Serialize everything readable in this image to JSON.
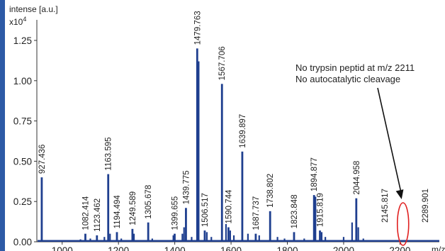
{
  "chart_data": {
    "type": "bar",
    "ylabel": "intense [a.u.]",
    "y_multiplier": "x10",
    "y_multiplier_exp": "4",
    "xlabel": "m/z",
    "xlim": [
      910,
      2340
    ],
    "ylim": [
      0,
      1.36
    ],
    "x_ticks": [
      1000,
      1200,
      1400,
      1600,
      1800,
      2000,
      2200
    ],
    "y_ticks": [
      {
        "value": 0.0,
        "label": "0.00"
      },
      {
        "value": 0.25,
        "label": "0.25"
      },
      {
        "value": 0.5,
        "label": "0.50"
      },
      {
        "value": 0.75,
        "label": "0.75"
      },
      {
        "value": 1.0,
        "label": "1.00"
      },
      {
        "value": 1.25,
        "label": "1.25"
      }
    ],
    "bar_color": "#1f3f8f",
    "peaks": [
      {
        "mz": 927.436,
        "label": "927.436",
        "intensity": 0.4
      },
      {
        "mz": 1082.414,
        "label": "1082.414",
        "intensity": 0.05
      },
      {
        "mz": 1123.462,
        "label": "1123.462",
        "intensity": 0.04
      },
      {
        "mz": 1163.595,
        "label": "1163.595",
        "intensity": 0.42
      },
      {
        "mz": 1194.494,
        "label": "1194.494",
        "intensity": 0.06
      },
      {
        "mz": 1249.589,
        "label": "1249.589",
        "intensity": 0.08
      },
      {
        "mz": 1305.678,
        "label": "1305.678",
        "intensity": 0.12
      },
      {
        "mz": 1399.655,
        "label": "1399.655",
        "intensity": 0.05
      },
      {
        "mz": 1439.775,
        "label": "1439.775",
        "intensity": 0.21
      },
      {
        "mz": 1479.763,
        "label": "1479.763",
        "intensity": 1.2
      },
      {
        "mz": 1506.517,
        "label": "1506.517",
        "intensity": 0.07
      },
      {
        "mz": 1567.706,
        "label": "1567.706",
        "intensity": 0.98
      },
      {
        "mz": 1590.744,
        "label": "1590.744",
        "intensity": 0.09
      },
      {
        "mz": 1639.897,
        "label": "1639.897",
        "intensity": 0.56
      },
      {
        "mz": 1687.737,
        "label": "1687.737",
        "intensity": 0.05
      },
      {
        "mz": 1738.802,
        "label": "1738.802",
        "intensity": 0.19
      },
      {
        "mz": 1823.848,
        "label": "1823.848",
        "intensity": 0.06
      },
      {
        "mz": 1894.877,
        "label": "1894.877",
        "intensity": 0.29
      },
      {
        "mz": 1915.819,
        "label": "1915.819",
        "intensity": 0.07
      },
      {
        "mz": 2044.958,
        "label": "2044.958",
        "intensity": 0.27
      },
      {
        "mz": 2145.817,
        "label": "2145.817",
        "intensity": 0.0
      },
      {
        "mz": 2289.901,
        "label": "2289.901",
        "intensity": 0.0
      }
    ],
    "minor_peaks": [
      {
        "mz": 1065,
        "intensity": 0.015
      },
      {
        "mz": 1100,
        "intensity": 0.02
      },
      {
        "mz": 1150,
        "intensity": 0.03
      },
      {
        "mz": 1170,
        "intensity": 0.05
      },
      {
        "mz": 1210,
        "intensity": 0.02
      },
      {
        "mz": 1255,
        "intensity": 0.05
      },
      {
        "mz": 1320,
        "intensity": 0.02
      },
      {
        "mz": 1395,
        "intensity": 0.04
      },
      {
        "mz": 1427,
        "intensity": 0.05
      },
      {
        "mz": 1433,
        "intensity": 0.09
      },
      {
        "mz": 1460,
        "intensity": 0.03
      },
      {
        "mz": 1485,
        "intensity": 1.12
      },
      {
        "mz": 1514,
        "intensity": 0.06
      },
      {
        "mz": 1530,
        "intensity": 0.03
      },
      {
        "mz": 1582,
        "intensity": 0.11
      },
      {
        "mz": 1597,
        "intensity": 0.07
      },
      {
        "mz": 1610,
        "intensity": 0.04
      },
      {
        "mz": 1660,
        "intensity": 0.05
      },
      {
        "mz": 1700,
        "intensity": 0.04
      },
      {
        "mz": 1765,
        "intensity": 0.03
      },
      {
        "mz": 1790,
        "intensity": 0.02
      },
      {
        "mz": 1860,
        "intensity": 0.02
      },
      {
        "mz": 1900,
        "intensity": 0.28
      },
      {
        "mz": 1922,
        "intensity": 0.06
      },
      {
        "mz": 1935,
        "intensity": 0.03
      },
      {
        "mz": 2000,
        "intensity": 0.03
      },
      {
        "mz": 2030,
        "intensity": 0.12
      },
      {
        "mz": 2052,
        "intensity": 0.09
      },
      {
        "mz": 2070,
        "intensity": 0.02
      },
      {
        "mz": 2150,
        "intensity": 0.01
      }
    ],
    "annotation": {
      "line1": "No trypsin peptid at m/z 2211",
      "line2": "No autocatalytic cleavage",
      "target_mz": 2211,
      "arrow_color": "#111111",
      "ellipse_color": "#e02020"
    }
  }
}
